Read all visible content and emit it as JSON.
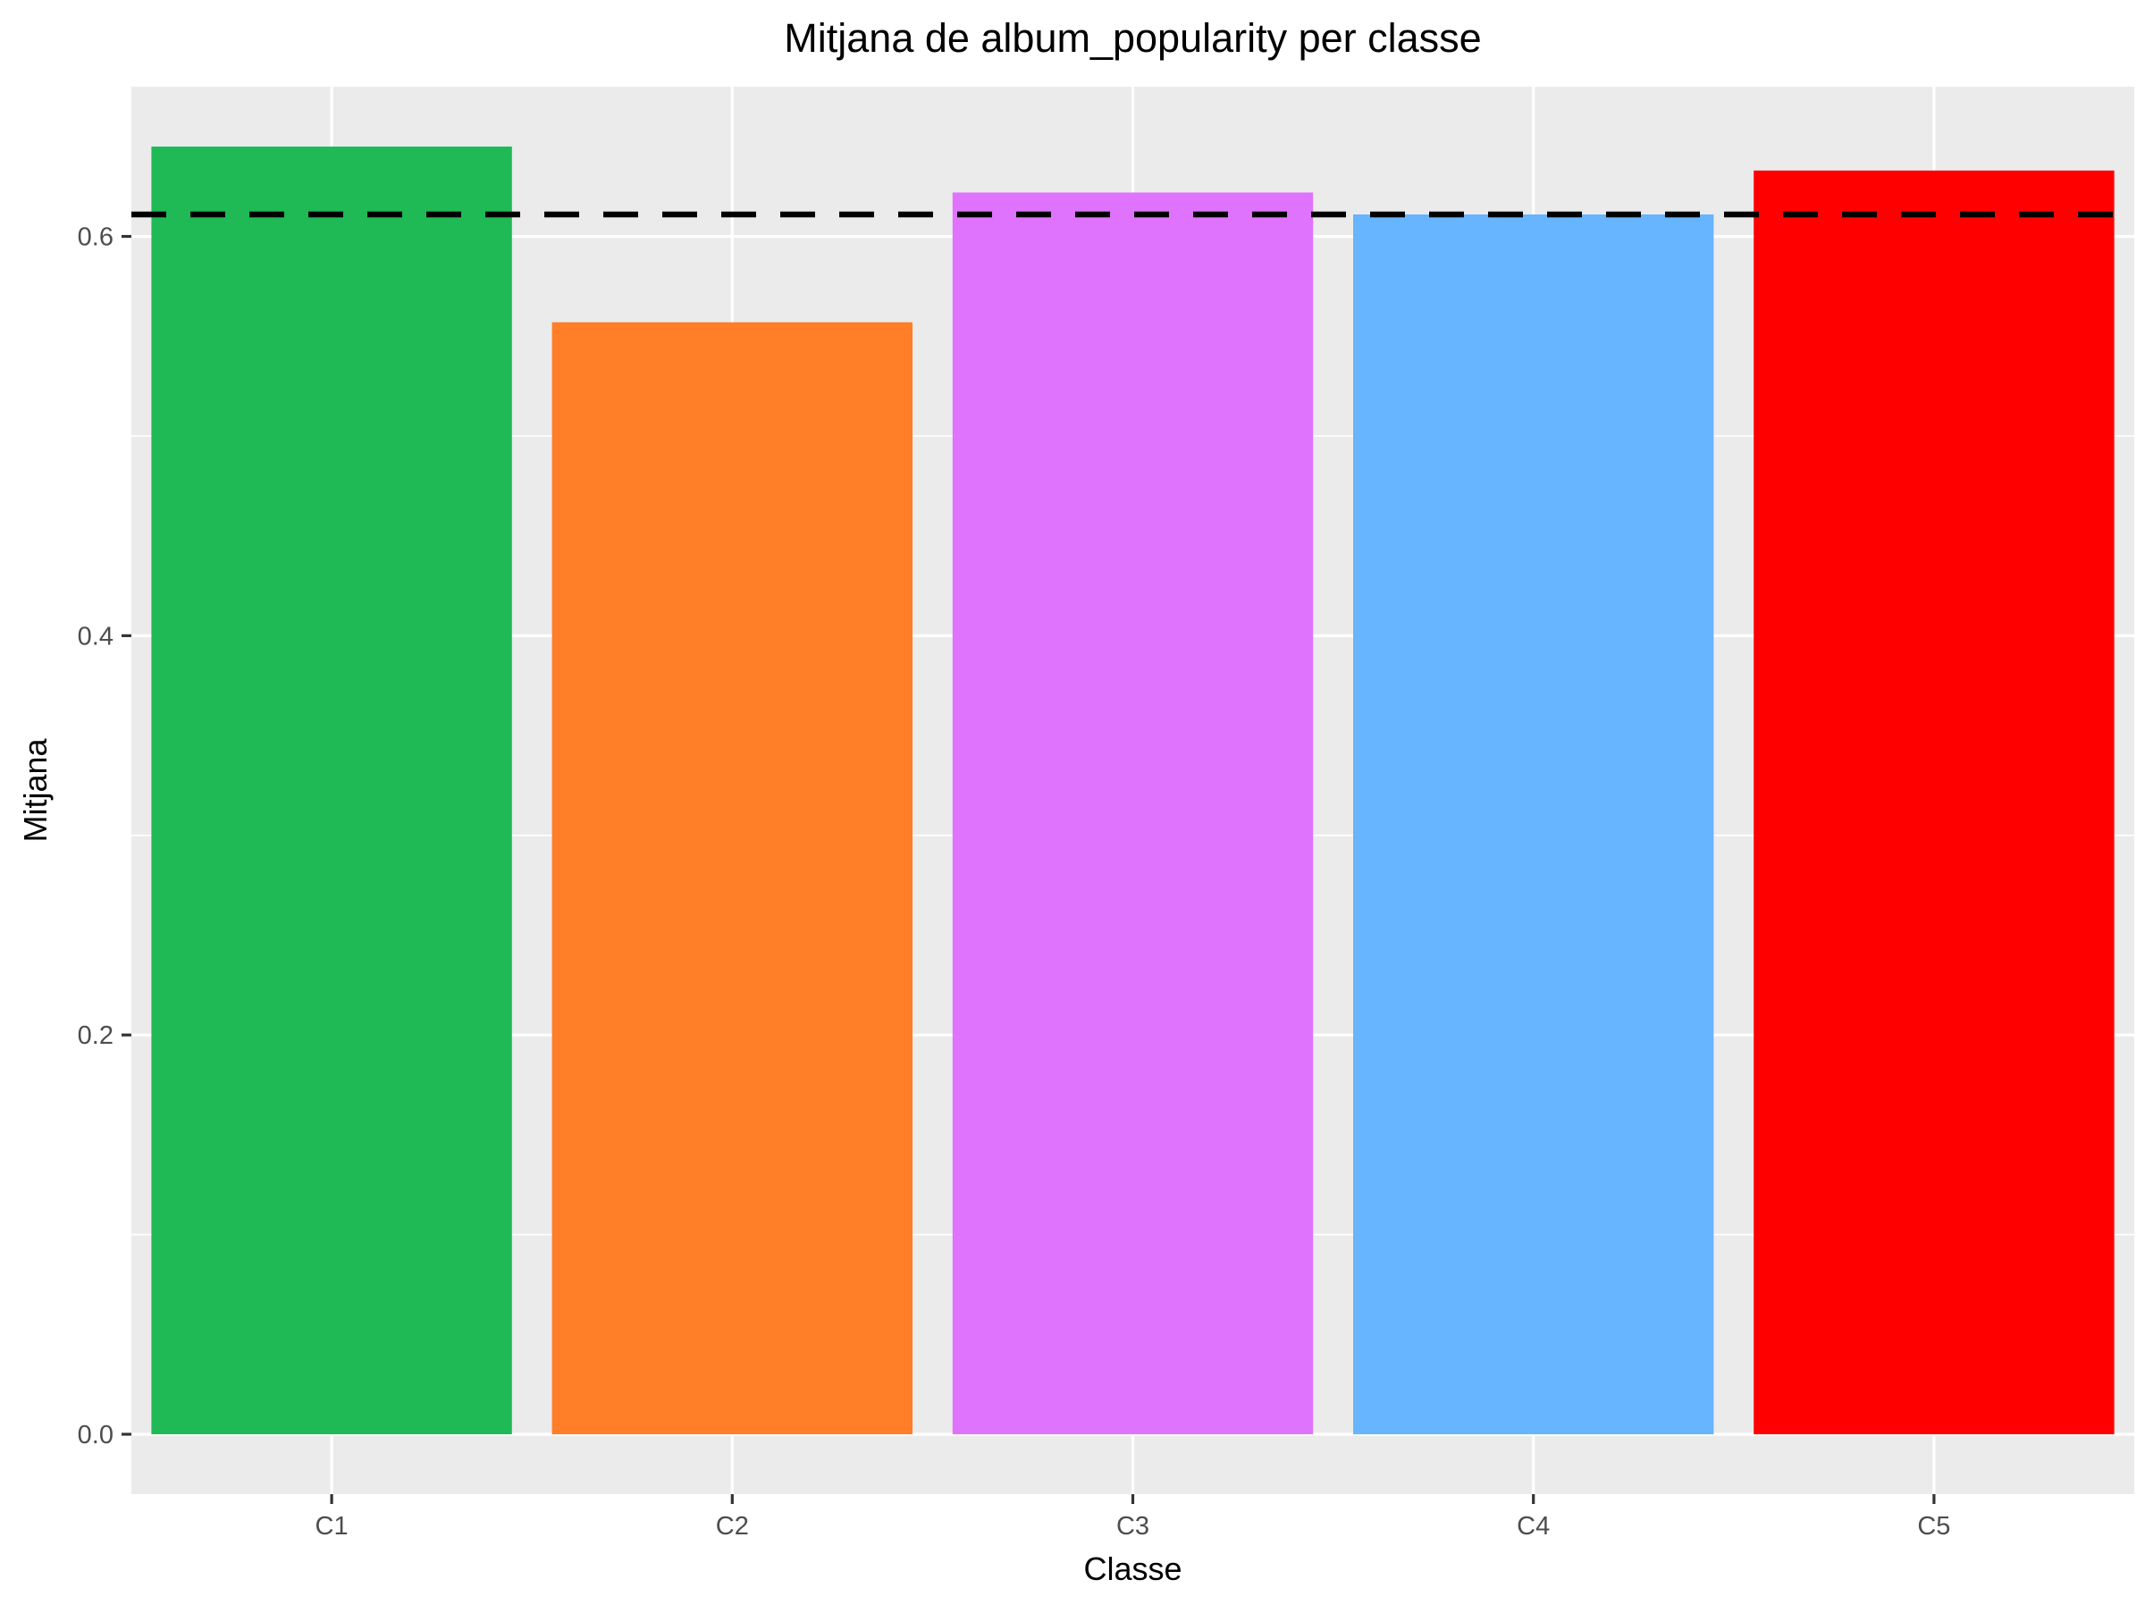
{
  "chart_data": {
    "type": "bar",
    "title": "Mitjana de album_popularity per classe",
    "xlabel": "Classe",
    "ylabel": "Mitjana",
    "categories": [
      "C1",
      "C2",
      "C3",
      "C4",
      "C5"
    ],
    "values": [
      0.645,
      0.557,
      0.622,
      0.611,
      0.633
    ],
    "colors": [
      "#1FB955",
      "#FF7E27",
      "#DF73FD",
      "#67B4FF",
      "#FF0000"
    ],
    "ylim": [
      -0.03,
      0.675
    ],
    "yticks": [
      0.0,
      0.2,
      0.4,
      0.6
    ],
    "ytick_labels": [
      "0.0",
      "0.2",
      "0.4",
      "0.6"
    ],
    "reference_line": {
      "value": 0.611,
      "style": "dashed",
      "color": "#000000"
    },
    "grid": true,
    "legend": "none",
    "panel_background": "#EBEBEB",
    "grid_color": "#FFFFFF",
    "axis_text_color": "#4D4D4D"
  }
}
